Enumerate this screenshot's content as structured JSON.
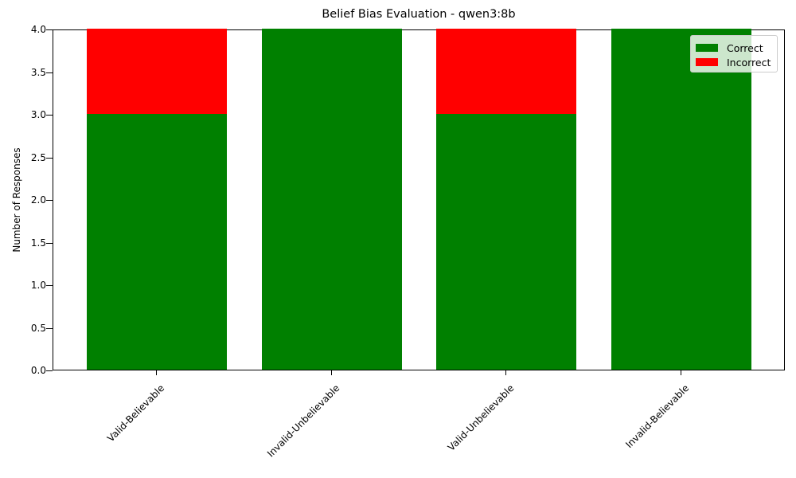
{
  "chart_data": {
    "type": "bar",
    "stacked": true,
    "title": "Belief Bias Evaluation - qwen3:8b",
    "xlabel": "",
    "ylabel": "Number of Responses",
    "ylim": [
      0,
      4.0
    ],
    "yticks": [
      "0.0",
      "0.5",
      "1.0",
      "1.5",
      "2.0",
      "2.5",
      "3.0",
      "3.5",
      "4.0"
    ],
    "categories": [
      "Valid-Believable",
      "Invalid-Unbelievable",
      "Valid-Unbelievable",
      "Invalid-Believable"
    ],
    "series": [
      {
        "name": "Correct",
        "color": "#008000",
        "values": [
          3,
          4,
          3,
          4
        ]
      },
      {
        "name": "Incorrect",
        "color": "#ff0000",
        "values": [
          1,
          0,
          1,
          0
        ]
      }
    ],
    "legend": {
      "position": "upper right",
      "entries": [
        "Correct",
        "Incorrect"
      ]
    },
    "grid": false
  }
}
